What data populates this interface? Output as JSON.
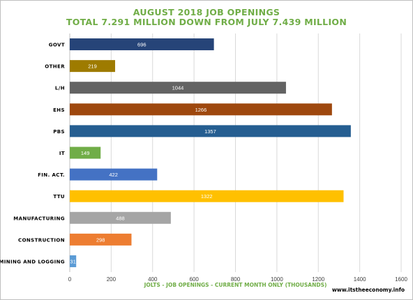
{
  "chart_data": {
    "type": "bar",
    "orientation": "horizontal",
    "title": "AUGUST 2018 JOB OPENINGS",
    "subtitle": "TOTAL 7.291 MILLION DOWN FROM JULY 7.439 MILLION",
    "xlabel": "JOLTS - JOB OPENINGS - CURRENT MONTH ONLY (THOUSANDS)",
    "ylabel": "",
    "xlim": [
      0,
      1600
    ],
    "xticks": [
      0,
      200,
      400,
      600,
      800,
      1000,
      1200,
      1400,
      1600
    ],
    "grid": true,
    "legend": "none",
    "categories": [
      "GOVT",
      "OTHER",
      "L/H",
      "EHS",
      "PBS",
      "IT",
      "FIN. ACT.",
      "TTU",
      "MANUFACTURING",
      "CONSTRUCTION",
      "MINING AND LOGGING"
    ],
    "values": [
      696,
      219,
      1044,
      1266,
      1357,
      149,
      422,
      1322,
      488,
      298,
      31
    ],
    "colors": [
      "#264478",
      "#9e7b00",
      "#636363",
      "#9e480e",
      "#255e91",
      "#70ad47",
      "#4472c4",
      "#ffc000",
      "#a5a5a5",
      "#ed7d31",
      "#5b9bd5"
    ]
  },
  "source_text": "www.itstheeconomy.info"
}
